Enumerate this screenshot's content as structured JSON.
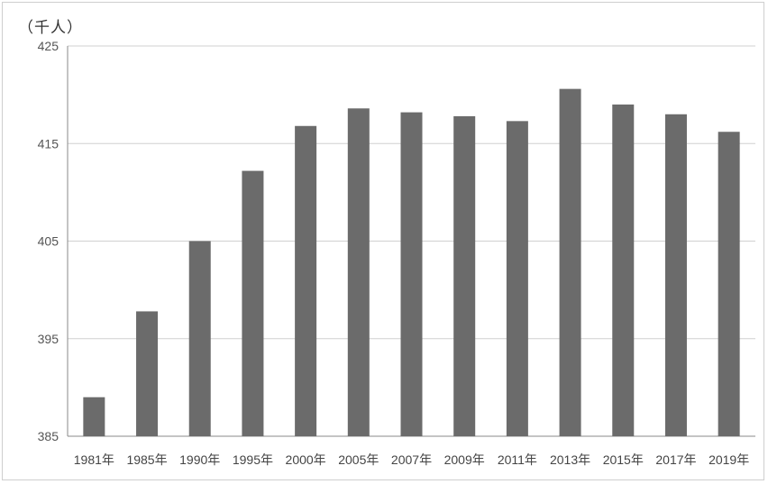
{
  "chart_data": {
    "type": "bar",
    "title": "",
    "unit_label": "（千人）",
    "xlabel": "",
    "ylabel": "",
    "categories": [
      "1981年",
      "1985年",
      "1990年",
      "1995年",
      "2000年",
      "2005年",
      "2007年",
      "2009年",
      "2011年",
      "2013年",
      "2015年",
      "2017年",
      "2019年"
    ],
    "values": [
      389.0,
      397.8,
      405.0,
      412.2,
      416.8,
      418.6,
      418.2,
      417.8,
      417.3,
      420.6,
      419.0,
      418.0,
      416.2
    ],
    "ylim": [
      385,
      425
    ],
    "yticks": [
      385,
      395,
      405,
      415,
      425
    ],
    "grid": true,
    "legend": "none",
    "colors": {
      "bar": "#6b6b6b",
      "grid": "#d0d0d0",
      "axis": "#8a8a8a"
    }
  }
}
